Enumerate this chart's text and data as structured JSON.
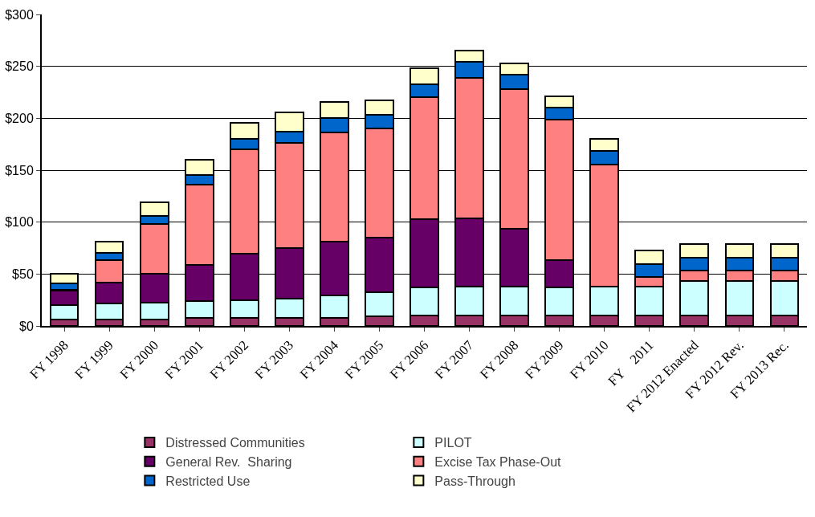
{
  "chart_data": {
    "type": "bar",
    "stacked": true,
    "categories": [
      "FY 1998",
      "FY 1999",
      "FY 2000",
      "FY 2001",
      "FY 2002",
      "FY 2003",
      "FY 2004",
      "FY 2005",
      "FY 2006",
      "FY 2007",
      "FY 2008",
      "FY 2009",
      "FY 2010",
      "FY    2011",
      "FY 2012 Enacted",
      "FY 2012 Rev.",
      "FY 2013 Rec."
    ],
    "series": [
      {
        "name": "Distressed Communities",
        "color": "#993366",
        "values": [
          6.5,
          6.5,
          6.5,
          7.5,
          7.5,
          8,
          7.5,
          9,
          10,
          10,
          10,
          10,
          10,
          10,
          10,
          10,
          10
        ]
      },
      {
        "name": "PILOT",
        "color": "#ccffff",
        "values": [
          13.5,
          15,
          16,
          16.5,
          17.5,
          18,
          21.5,
          23.5,
          27.5,
          28,
          28,
          27.5,
          28,
          28,
          33,
          33,
          33
        ]
      },
      {
        "name": "General Rev.  Sharing",
        "color": "#660066",
        "values": [
          14,
          20,
          27.5,
          34.5,
          44.5,
          49,
          52,
          52.5,
          65.5,
          65.5,
          55.5,
          26,
          0,
          0,
          0,
          0,
          0
        ]
      },
      {
        "name": "Excise Tax Phase-Out",
        "color": "#ff8080",
        "values": [
          1,
          22,
          48,
          77.5,
          100.5,
          101,
          105,
          105.5,
          117,
          135.5,
          134.5,
          135.5,
          117.5,
          9.5,
          10,
          10,
          10
        ]
      },
      {
        "name": "Restricted Use",
        "color": "#0066cc",
        "values": [
          6,
          7,
          8,
          9,
          10,
          11.5,
          14.5,
          12.5,
          13,
          15,
          14,
          11,
          13,
          12,
          13,
          13,
          13
        ]
      },
      {
        "name": "Pass-Through",
        "color": "#ffffcc",
        "values": [
          9.5,
          11,
          13,
          15,
          16,
          18.5,
          15.5,
          14,
          15,
          11,
          11,
          11,
          11.5,
          13,
          13,
          13,
          13
        ]
      }
    ],
    "ylim": [
      0,
      300
    ],
    "yticks": [
      {
        "value": 0,
        "label": "$0"
      },
      {
        "value": 50,
        "label": "$50"
      },
      {
        "value": 100,
        "label": "$100"
      },
      {
        "value": 150,
        "label": "$150"
      },
      {
        "value": 200,
        "label": "$200"
      },
      {
        "value": 250,
        "label": "$250"
      },
      {
        "value": 300,
        "label": "$300"
      }
    ],
    "grid": "y",
    "legend": "bottom"
  }
}
